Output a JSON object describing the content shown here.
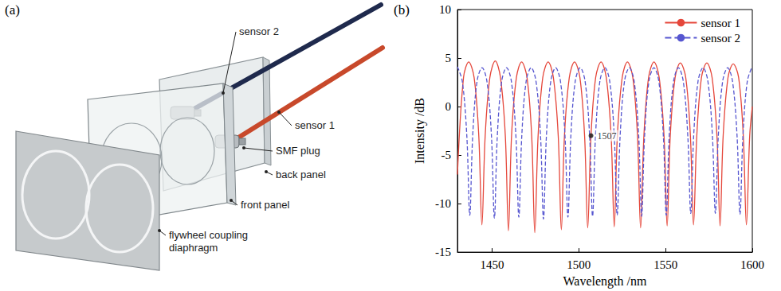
{
  "diagram": {
    "panel_label": "(a)",
    "labels": [
      "sensor 2",
      "sensor 1",
      "SMF plug",
      "back panel",
      "front panel",
      "flywheel coupling diaphragm"
    ]
  },
  "chart_data": {
    "panel_label": "(b)",
    "type": "line",
    "xlabel": "Wavelength /nm",
    "ylabel": "Intensity /dB",
    "xlim": [
      1430,
      1600
    ],
    "xticks": [
      1450,
      1500,
      1550,
      1600
    ],
    "ylim": [
      -15,
      10
    ],
    "yticks": [
      -15,
      -10,
      -5,
      0,
      5,
      10
    ],
    "grid": false,
    "legend": "upper right",
    "annotations": [
      {
        "text": "1507",
        "x": 1507,
        "y": -3
      }
    ],
    "series": [
      {
        "name": "sensor 1",
        "color": "#e5473b",
        "line_style": "solid",
        "x": [
          1430.0,
          1433.5,
          1436.5,
          1439.6,
          1442.3,
          1444.1,
          1446.0,
          1448.7,
          1451.8,
          1454.8,
          1457.6,
          1459.4,
          1461.2,
          1464.0,
          1467.0,
          1470.1,
          1472.8,
          1474.6,
          1476.5,
          1479.2,
          1482.3,
          1485.3,
          1488.1,
          1489.9,
          1491.7,
          1494.5,
          1497.5,
          1500.6,
          1503.3,
          1505.1,
          1507.0,
          1509.7,
          1512.8,
          1515.8,
          1518.6,
          1520.4,
          1522.2,
          1525.0,
          1528.0,
          1531.1,
          1533.8,
          1535.6,
          1537.5,
          1540.2,
          1543.3,
          1546.3,
          1549.1,
          1550.9,
          1552.7,
          1555.5,
          1558.5,
          1561.6,
          1564.3,
          1566.1,
          1568.0,
          1570.7,
          1573.8,
          1576.8,
          1579.6,
          1581.4,
          1583.2,
          1586.0,
          1589.0,
          1592.1,
          1594.8,
          1596.6,
          1598.5,
          1600.0
        ],
        "values": [
          -7,
          3,
          4.6,
          3,
          -3,
          -12.2,
          -3,
          3,
          4.7,
          3,
          -3,
          -12.8,
          -3,
          3,
          4.6,
          3,
          -3,
          -13.0,
          -3,
          3,
          4.6,
          3,
          -3,
          -12.7,
          -3,
          3,
          4.6,
          3,
          -3,
          -12.5,
          -3,
          3,
          4.6,
          3,
          -3,
          -12.4,
          -3,
          3,
          4.6,
          3,
          -3,
          -12.5,
          -3,
          3,
          4.6,
          3,
          -3,
          -12.3,
          -3,
          3,
          4.5,
          3,
          -3,
          -12.2,
          -3,
          3,
          4.5,
          3,
          -3,
          -12.3,
          -3,
          3,
          4.4,
          3,
          -3,
          -12.2,
          -3,
          0
        ]
      },
      {
        "name": "sensor 2",
        "color": "#5656d0",
        "line_style": "dashed",
        "x": [
          1430.0,
          1432.8,
          1435.4,
          1437.1,
          1438.8,
          1441.3,
          1444.2,
          1447.0,
          1449.6,
          1451.3,
          1453.0,
          1455.5,
          1458.3,
          1461.1,
          1463.7,
          1465.4,
          1467.1,
          1469.6,
          1472.5,
          1475.3,
          1477.9,
          1479.6,
          1481.3,
          1483.8,
          1486.6,
          1489.4,
          1492.0,
          1493.7,
          1495.4,
          1497.9,
          1500.8,
          1503.6,
          1506.2,
          1507.9,
          1509.6,
          1512.1,
          1515.0,
          1517.8,
          1520.4,
          1522.1,
          1523.8,
          1526.3,
          1529.1,
          1531.9,
          1534.5,
          1536.2,
          1537.9,
          1540.4,
          1543.3,
          1546.1,
          1548.7,
          1550.4,
          1552.1,
          1554.6,
          1557.4,
          1560.2,
          1562.8,
          1564.5,
          1566.2,
          1568.7,
          1571.6,
          1574.4,
          1577.0,
          1578.7,
          1580.4,
          1582.9,
          1585.8,
          1588.6,
          1591.2,
          1592.9,
          1594.6,
          1597.1,
          1599.9
        ],
        "values": [
          4.1,
          2.6,
          -3,
          -11.2,
          -3,
          2.6,
          4.0,
          2.6,
          -3,
          -11.5,
          -3,
          2.6,
          4.0,
          2.6,
          -3,
          -11.4,
          -3,
          2.6,
          4.0,
          2.6,
          -3,
          -11.6,
          -3,
          2.6,
          4.0,
          2.6,
          -3,
          -11.4,
          -3,
          2.6,
          4.0,
          2.6,
          -3,
          -11.3,
          -3,
          2.6,
          4.0,
          2.6,
          -3,
          -11.2,
          -3,
          2.6,
          4.0,
          2.6,
          -3,
          -11.3,
          -3,
          2.6,
          4.0,
          2.6,
          -3,
          -11.2,
          -3,
          2.6,
          4.0,
          2.6,
          -3,
          -11.0,
          -3,
          2.6,
          4.0,
          2.6,
          -3,
          -11.0,
          -3,
          2.6,
          4.0,
          2.6,
          -3,
          -11.1,
          -3,
          2.6,
          4.1
        ]
      }
    ]
  }
}
